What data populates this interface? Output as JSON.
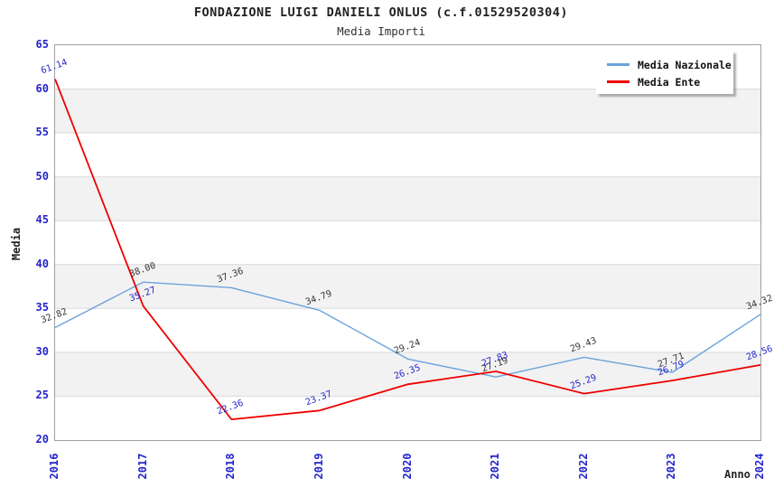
{
  "header": {
    "title": "FONDAZIONE LUIGI DANIELI ONLUS (c.f.01529520304)",
    "subtitle": "Media Importi"
  },
  "colors": {
    "axis_tick_text": "#2424cc",
    "national_line": "#6ba3dc",
    "ente_line": "#ee0000",
    "national_label_text": "#333333",
    "ente_label_text": "#2424cc",
    "band_fill": "#f2f2f2",
    "gridline": "#d9d9d9",
    "plot_border": "#a0a0a0"
  },
  "chart_data": {
    "type": "line",
    "title": "FONDAZIONE LUIGI DANIELI ONLUS (c.f.01529520304)",
    "subtitle": "Media Importi",
    "xlabel": "Anno",
    "ylabel": "Media",
    "categories": [
      "2016",
      "2017",
      "2018",
      "2019",
      "2020",
      "2021",
      "2022",
      "2023",
      "2024"
    ],
    "series": [
      {
        "name": "Media Nazionale",
        "color": "#6ba3dc",
        "label_color": "#333333",
        "values": [
          32.82,
          38.0,
          37.36,
          34.79,
          29.24,
          27.19,
          29.43,
          27.71,
          34.32
        ]
      },
      {
        "name": "Media Ente",
        "color": "#ee0000",
        "label_color": "#2424cc",
        "values": [
          61.14,
          35.27,
          22.36,
          23.37,
          26.35,
          27.83,
          25.29,
          26.79,
          28.56
        ]
      }
    ],
    "ylim": [
      20,
      65
    ],
    "ytick_step": 5,
    "grid": "horizontal-bands-alternating",
    "legend_position": "top-right",
    "data_labels": "values-two-decimals"
  }
}
